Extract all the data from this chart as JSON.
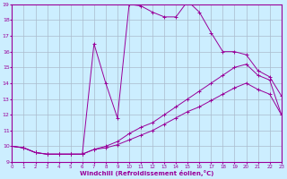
{
  "xlabel": "Windchill (Refroidissement éolien,°C)",
  "bg_color": "#cceeff",
  "grid_color": "#aabbcc",
  "line_color": "#990099",
  "xlim": [
    0,
    23
  ],
  "ylim": [
    9,
    19
  ],
  "xticks": [
    0,
    1,
    2,
    3,
    4,
    5,
    6,
    7,
    8,
    9,
    10,
    11,
    12,
    13,
    14,
    15,
    16,
    17,
    18,
    19,
    20,
    21,
    22,
    23
  ],
  "yticks": [
    9,
    10,
    11,
    12,
    13,
    14,
    15,
    16,
    17,
    18,
    19
  ],
  "series": [
    {
      "x": [
        0,
        1,
        2,
        3,
        4,
        5,
        6,
        7,
        8,
        9,
        10,
        11,
        12,
        13,
        14,
        15,
        16,
        17,
        18,
        19,
        20,
        21,
        22,
        23
      ],
      "y": [
        10.0,
        9.9,
        9.6,
        9.5,
        9.5,
        9.5,
        9.5,
        16.5,
        14.0,
        11.8,
        19.0,
        18.9,
        18.5,
        18.2,
        18.2,
        19.2,
        18.5,
        17.2,
        16.0,
        16.0,
        15.8,
        14.8,
        14.4,
        13.2
      ]
    },
    {
      "x": [
        0,
        1,
        2,
        3,
        4,
        5,
        6,
        7,
        8,
        9,
        10,
        11,
        12,
        13,
        14,
        15,
        16,
        17,
        18,
        19,
        20,
        21,
        22,
        23
      ],
      "y": [
        10.0,
        9.9,
        9.6,
        9.5,
        9.5,
        9.5,
        9.5,
        9.8,
        10.0,
        10.3,
        10.8,
        11.2,
        11.5,
        12.0,
        12.5,
        13.0,
        13.5,
        14.0,
        14.5,
        15.0,
        15.2,
        14.5,
        14.2,
        12.0
      ]
    },
    {
      "x": [
        0,
        1,
        2,
        3,
        4,
        5,
        6,
        7,
        8,
        9,
        10,
        11,
        12,
        13,
        14,
        15,
        16,
        17,
        18,
        19,
        20,
        21,
        22,
        23
      ],
      "y": [
        10.0,
        9.9,
        9.6,
        9.5,
        9.5,
        9.5,
        9.5,
        9.8,
        9.9,
        10.1,
        10.4,
        10.7,
        11.0,
        11.4,
        11.8,
        12.2,
        12.5,
        12.9,
        13.3,
        13.7,
        14.0,
        13.6,
        13.3,
        12.0
      ]
    }
  ]
}
